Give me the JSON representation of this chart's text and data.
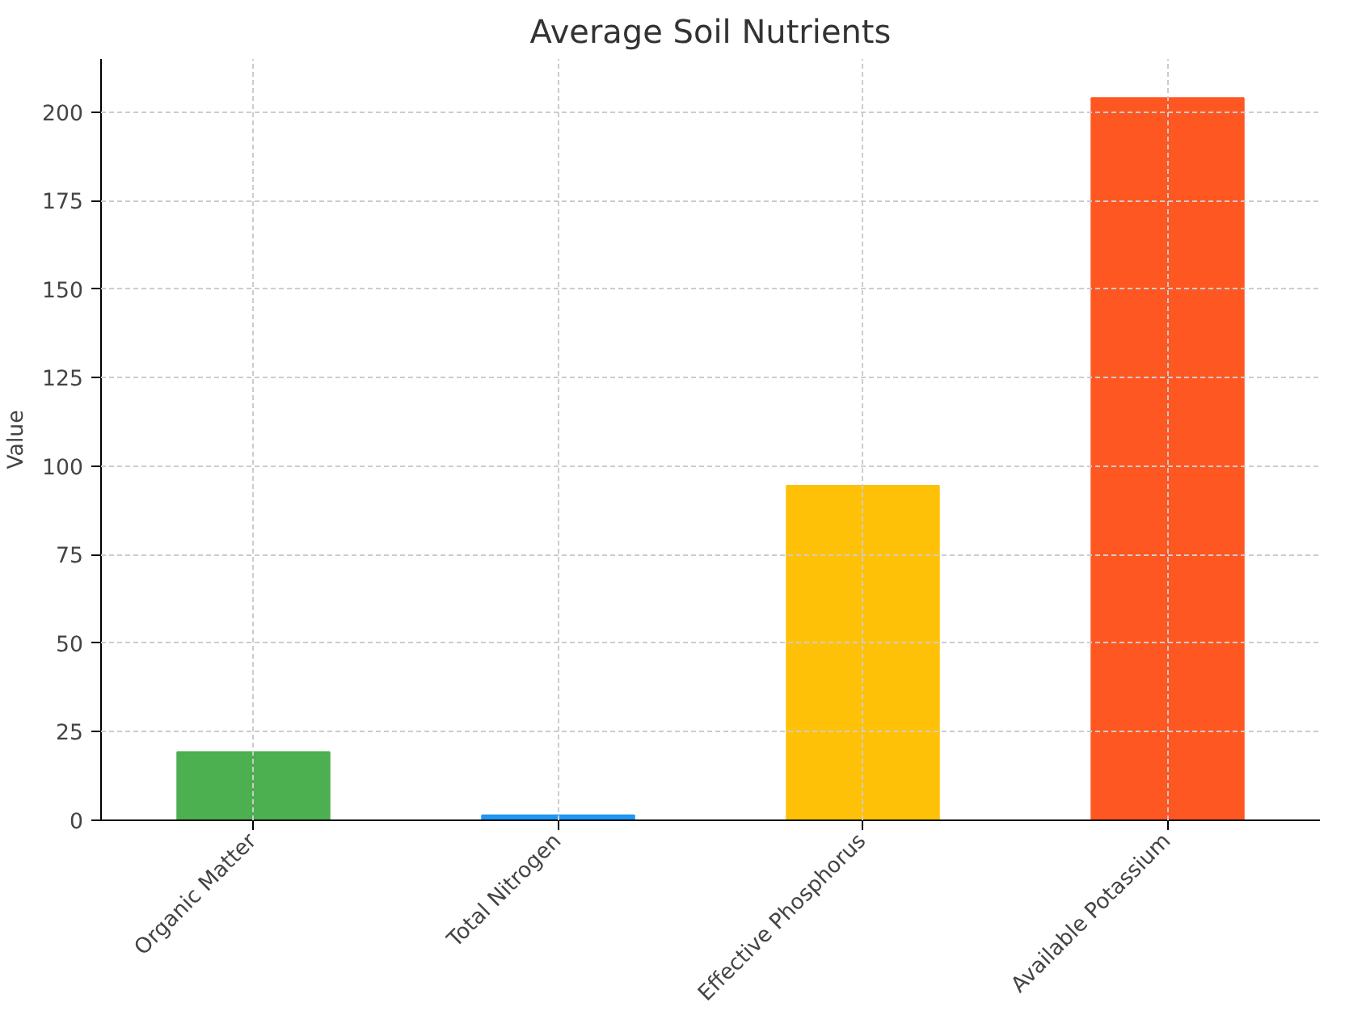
{
  "chart_data": {
    "type": "bar",
    "title": "Average Soil Nutrients",
    "ylabel": "Value",
    "categories": [
      "Organic Matter",
      "Total Nitrogen",
      "Effective Phosphorus",
      "Available Potassium"
    ],
    "values": [
      19.3,
      1.4,
      94.5,
      204
    ],
    "colors": [
      "#4caf50",
      "#2196f3",
      "#ffc107",
      "#ff5722"
    ],
    "ylim": [
      0,
      215
    ],
    "yticks": [
      0,
      25,
      50,
      75,
      100,
      125,
      150,
      175,
      200
    ],
    "grid": true
  }
}
